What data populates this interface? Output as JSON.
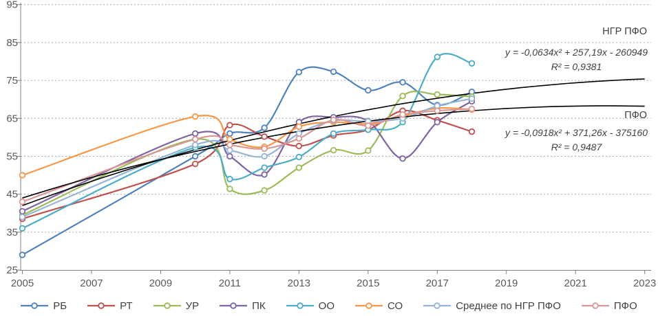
{
  "chart_data": {
    "type": "line",
    "x": [
      2005,
      2010,
      2011,
      2012,
      2013,
      2014,
      2015,
      2016,
      2017,
      2018
    ],
    "series": [
      {
        "key": "rb",
        "label": "РБ",
        "color": "#4F81BD",
        "values": [
          29,
          55,
          61,
          62.5,
          77.2,
          77.3,
          72.4,
          74.5,
          68.5,
          72
        ]
      },
      {
        "key": "rt",
        "label": "РТ",
        "color": "#C0504D",
        "values": [
          38.5,
          53,
          63.2,
          60.2,
          57.7,
          60.5,
          62,
          67,
          64.5,
          61.5
        ]
      },
      {
        "key": "ur",
        "label": "УР",
        "color": "#9BBB59",
        "values": [
          39.5,
          59.5,
          46.4,
          46,
          52,
          56.6,
          56.5,
          70.9,
          71.3,
          70.7
        ]
      },
      {
        "key": "pk",
        "label": "ПК",
        "color": "#8064A2",
        "values": [
          40.5,
          61,
          55,
          50.2,
          64,
          65.3,
          64.3,
          54.4,
          64,
          69.5
        ]
      },
      {
        "key": "oo",
        "label": "ОО",
        "color": "#4BACC6",
        "values": [
          36,
          57.3,
          49,
          52,
          54.8,
          61,
          62,
          64,
          81.2,
          79.5
        ]
      },
      {
        "key": "so",
        "label": "СО",
        "color": "#F79646",
        "values": [
          50,
          65.5,
          59.5,
          57.5,
          62.8,
          64,
          63.6,
          65.6,
          67.7,
          67.3
        ]
      },
      {
        "key": "avg-ngr-pfo",
        "label": "Среднее по НГР ПФО",
        "color": "#95B3D7",
        "values": [
          39,
          58,
          56.6,
          55,
          61,
          64.4,
          64.2,
          65,
          68.3,
          70.2
        ]
      },
      {
        "key": "pfo",
        "label": "ПФО",
        "color": "#D99694",
        "values": [
          43,
          59.5,
          58,
          57,
          59.7,
          64.6,
          63.1,
          66,
          67,
          67.5
        ]
      }
    ],
    "trendlines": [
      {
        "key": "ngr-pfo",
        "label": "НГР ПФО",
        "equation": "y = -0,0634x² + 257,19x - 260949",
        "r_squared": "R² = 0,9381",
        "color": "#000000",
        "anchors": [
          [
            2005,
            42
          ],
          [
            2014,
            65.5
          ],
          [
            2023,
            75.4
          ]
        ]
      },
      {
        "key": "pfo",
        "label": "ПФО",
        "equation": "y = -0,0918x² + 371,26x - 375160",
        "r_squared": "R² = 0,9487",
        "color": "#000000",
        "anchors": [
          [
            2005,
            44
          ],
          [
            2014,
            63
          ],
          [
            2023,
            68.2
          ]
        ]
      }
    ],
    "x_axis": {
      "tick_labels": [
        "2005",
        "2007",
        "2009",
        "2011",
        "2013",
        "2015",
        "2017",
        "2019",
        "2021",
        "2023"
      ],
      "min": 2005,
      "max": 2023
    },
    "y_axis": {
      "tick_labels": [
        "25",
        "35",
        "45",
        "55",
        "65",
        "75",
        "85",
        "95"
      ],
      "min": 25,
      "max": 95
    },
    "grid": "horizontal-dotted",
    "legend_position": "bottom"
  }
}
